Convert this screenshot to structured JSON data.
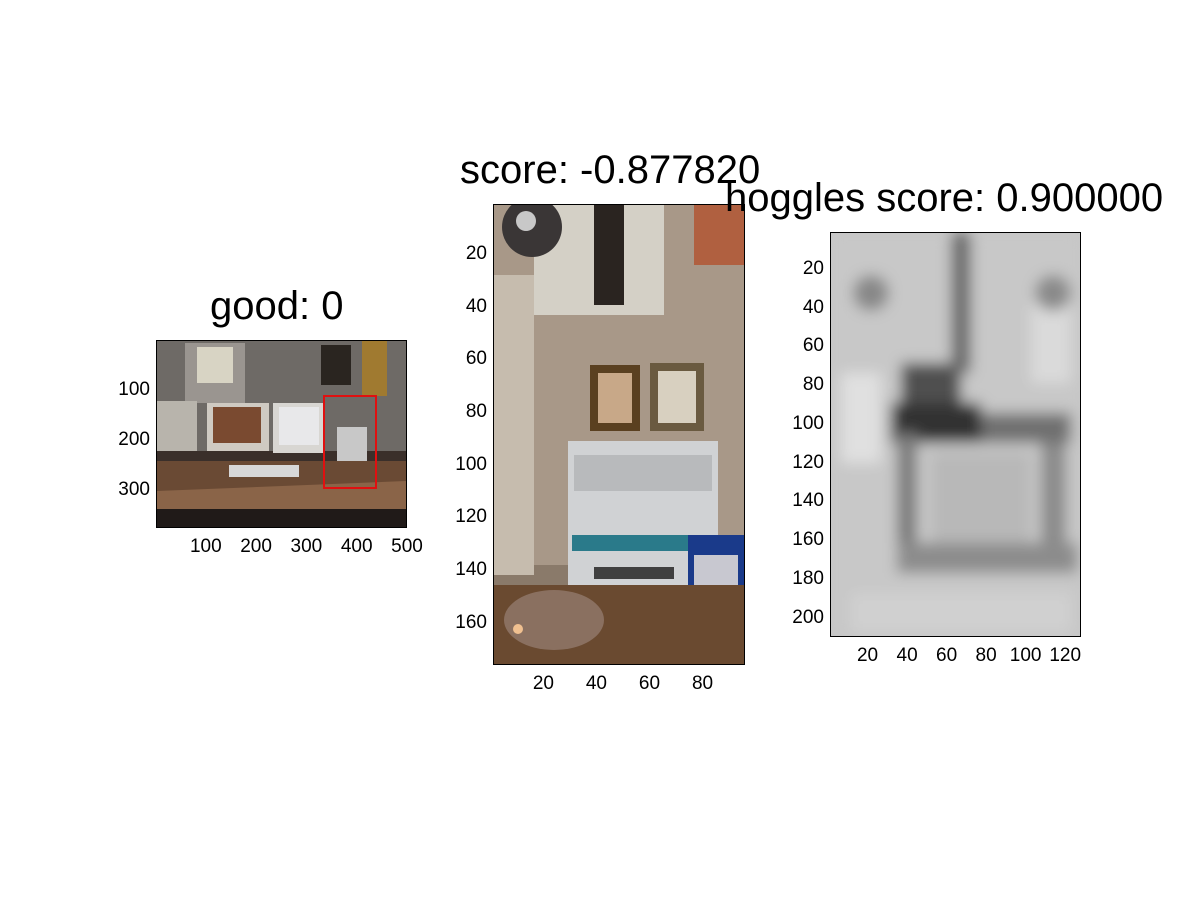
{
  "chart_data": [
    {
      "type": "image",
      "title": "good: 0",
      "xticks": [
        "100",
        "200",
        "300",
        "400",
        "500"
      ],
      "yticks": [
        "100",
        "200",
        "300"
      ],
      "xlim": [
        1,
        500
      ],
      "ylim": [
        1,
        375
      ],
      "box_color": "#e01010"
    },
    {
      "type": "image",
      "title": "score: -0.877820",
      "xticks": [
        "20",
        "40",
        "60",
        "80"
      ],
      "yticks": [
        "20",
        "40",
        "60",
        "80",
        "100",
        "120",
        "140",
        "160"
      ],
      "xlim": [
        1,
        96
      ],
      "ylim": [
        1,
        176
      ]
    },
    {
      "type": "heatmap",
      "title": "hoggles score: 0.900000",
      "xticks": [
        "20",
        "40",
        "60",
        "80",
        "100",
        "120"
      ],
      "yticks": [
        "20",
        "40",
        "60",
        "80",
        "100",
        "120",
        "140",
        "160",
        "180",
        "200"
      ],
      "xlim": [
        1,
        128
      ],
      "ylim": [
        1,
        210
      ],
      "colormap": "gray"
    }
  ]
}
